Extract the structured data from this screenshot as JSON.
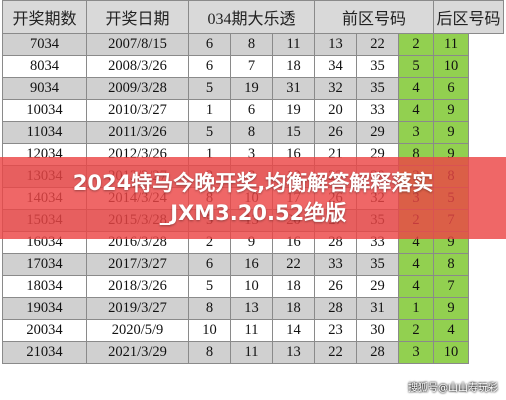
{
  "table": {
    "headers": [
      "开奖期数",
      "开奖日期",
      "034期大乐透",
      "前区号码",
      "后区号码"
    ],
    "rows": [
      {
        "period": "7034",
        "date": "2007/8/15",
        "front": [
          "6",
          "8",
          "11",
          "13",
          "22"
        ],
        "back": [
          "2",
          "11"
        ]
      },
      {
        "period": "8034",
        "date": "2008/3/26",
        "front": [
          "6",
          "7",
          "18",
          "34",
          "35"
        ],
        "back": [
          "5",
          "10"
        ]
      },
      {
        "period": "9034",
        "date": "2009/3/28",
        "front": [
          "5",
          "19",
          "31",
          "32",
          "35"
        ],
        "back": [
          "4",
          "6"
        ]
      },
      {
        "period": "10034",
        "date": "2010/3/27",
        "front": [
          "1",
          "6",
          "19",
          "20",
          "33"
        ],
        "back": [
          "4",
          "9"
        ]
      },
      {
        "period": "11034",
        "date": "2011/3/26",
        "front": [
          "5",
          "8",
          "15",
          "26",
          "29"
        ],
        "back": [
          "3",
          "9"
        ]
      },
      {
        "period": "12034",
        "date": "2012/3/26",
        "front": [
          "1",
          "3",
          "16",
          "21",
          "29"
        ],
        "back": [
          "8",
          "9"
        ]
      },
      {
        "period": "13034",
        "date": "2013/3/27",
        "front": [
          "2",
          "8",
          "13",
          "22",
          "30"
        ],
        "back": [
          "3",
          "8"
        ]
      },
      {
        "period": "14034",
        "date": "2014/3/24",
        "front": [
          "8",
          "10",
          "17",
          "26",
          "32"
        ],
        "back": [
          "3",
          "5"
        ]
      },
      {
        "period": "15034",
        "date": "2015/3/28",
        "front": [
          "5",
          "13",
          "20",
          "27",
          "35"
        ],
        "back": [
          "2",
          "7"
        ]
      },
      {
        "period": "16034",
        "date": "2016/3/28",
        "front": [
          "2",
          "9",
          "16",
          "28",
          "33"
        ],
        "back": [
          "4",
          "9"
        ]
      },
      {
        "period": "17034",
        "date": "2017/3/27",
        "front": [
          "6",
          "16",
          "22",
          "33",
          "35"
        ],
        "back": [
          "4",
          "8"
        ]
      },
      {
        "period": "18034",
        "date": "2018/3/26",
        "front": [
          "5",
          "10",
          "18",
          "26",
          "29"
        ],
        "back": [
          "4",
          "7"
        ]
      },
      {
        "period": "19034",
        "date": "2019/3/27",
        "front": [
          "8",
          "13",
          "18",
          "28",
          "31"
        ],
        "back": [
          "1",
          "9"
        ]
      },
      {
        "period": "20034",
        "date": "2020/5/9",
        "front": [
          "10",
          "11",
          "14",
          "23",
          "30"
        ],
        "back": [
          "2",
          "4"
        ]
      },
      {
        "period": "21034",
        "date": "2021/3/29",
        "front": [
          "8",
          "11",
          "13",
          "22",
          "28"
        ],
        "back": [
          "3",
          "10"
        ]
      }
    ]
  },
  "banner": {
    "line1": "2024特马今晚开奖,均衡解答解释落实",
    "line2": "_JXM3.20.52绝版"
  },
  "watermark": "搜狐号@山山寿玩彩",
  "colors": {
    "header_bg": "#d9d9d9",
    "row_shade": "#d0d0d0",
    "back_area_green": "#92d050",
    "banner_red": "#eb4646"
  }
}
